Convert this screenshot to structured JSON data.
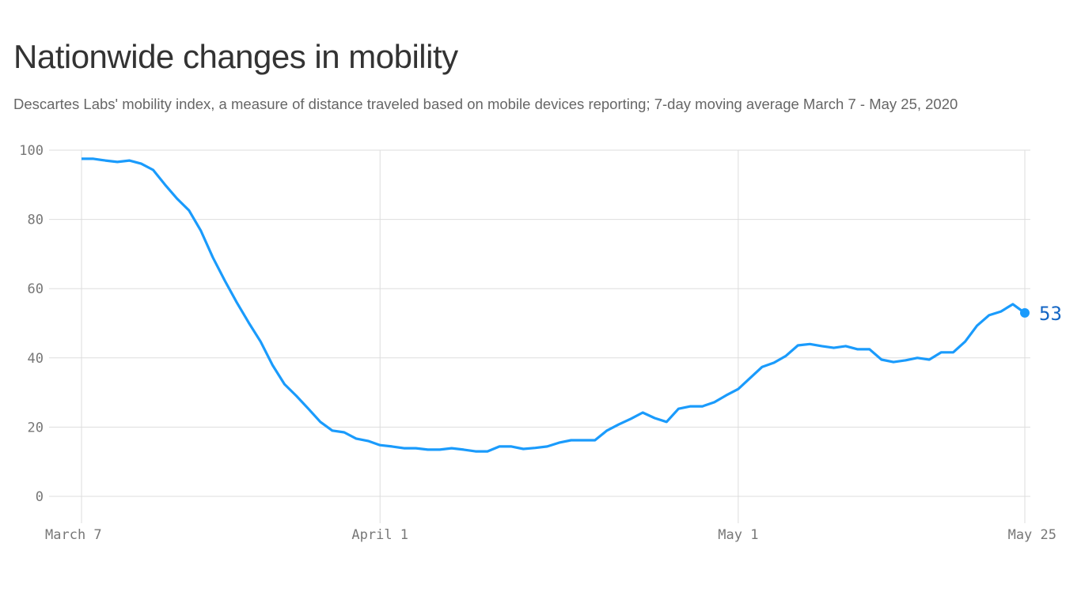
{
  "title": "Nationwide changes in mobility",
  "subtitle": "Descartes Labs' mobility index, a measure of distance traveled based on mobile devices reporting; 7-day moving average March 7 - May 25, 2020",
  "colors": {
    "line": "#1a9bfc",
    "end_label": "#1466c4",
    "grid": "#dddddd"
  },
  "chart_data": {
    "type": "line",
    "title": "Nationwide changes in mobility",
    "ylim": [
      0,
      100
    ],
    "yticks": [
      0,
      20,
      40,
      60,
      80,
      100
    ],
    "xticks": [
      {
        "date": "2020-03-07",
        "label": "March 7"
      },
      {
        "date": "2020-04-01",
        "label": "April 1"
      },
      {
        "date": "2020-05-01",
        "label": "May 1"
      },
      {
        "date": "2020-05-25",
        "label": "May 25"
      }
    ],
    "grid": true,
    "end_label": "53",
    "x": [
      "2020-03-07",
      "2020-03-08",
      "2020-03-09",
      "2020-03-10",
      "2020-03-11",
      "2020-03-12",
      "2020-03-13",
      "2020-03-14",
      "2020-03-15",
      "2020-03-16",
      "2020-03-17",
      "2020-03-18",
      "2020-03-19",
      "2020-03-20",
      "2020-03-21",
      "2020-03-22",
      "2020-03-23",
      "2020-03-24",
      "2020-03-25",
      "2020-03-26",
      "2020-03-27",
      "2020-03-28",
      "2020-03-29",
      "2020-03-30",
      "2020-03-31",
      "2020-04-01",
      "2020-04-02",
      "2020-04-03",
      "2020-04-04",
      "2020-04-05",
      "2020-04-06",
      "2020-04-07",
      "2020-04-08",
      "2020-04-09",
      "2020-04-10",
      "2020-04-11",
      "2020-04-12",
      "2020-04-13",
      "2020-04-14",
      "2020-04-15",
      "2020-04-16",
      "2020-04-17",
      "2020-04-18",
      "2020-04-19",
      "2020-04-20",
      "2020-04-21",
      "2020-04-22",
      "2020-04-23",
      "2020-04-24",
      "2020-04-25",
      "2020-04-26",
      "2020-04-27",
      "2020-04-28",
      "2020-04-29",
      "2020-04-30",
      "2020-05-01",
      "2020-05-02",
      "2020-05-03",
      "2020-05-04",
      "2020-05-05",
      "2020-05-06",
      "2020-05-07",
      "2020-05-08",
      "2020-05-09",
      "2020-05-10",
      "2020-05-11",
      "2020-05-12",
      "2020-05-13",
      "2020-05-14",
      "2020-05-15",
      "2020-05-16",
      "2020-05-17",
      "2020-05-18",
      "2020-05-19",
      "2020-05-20",
      "2020-05-21",
      "2020-05-22",
      "2020-05-23",
      "2020-05-24",
      "2020-05-25"
    ],
    "values": [
      97.5,
      97.5,
      97,
      96.6,
      97,
      96.1,
      94.3,
      90,
      86,
      82.6,
      76.7,
      69,
      62.3,
      56,
      50.2,
      44.7,
      37.9,
      32.4,
      29,
      25.3,
      21.5,
      19,
      18.5,
      16.7,
      16,
      14.8,
      14.4,
      13.9,
      13.9,
      13.5,
      13.5,
      13.9,
      13.5,
      13,
      13,
      14.4,
      14.4,
      13.7,
      14,
      14.4,
      15.5,
      16.2,
      16.2,
      16.2,
      19,
      20.8,
      22.4,
      24.2,
      22.6,
      21.5,
      25.3,
      26,
      26,
      27.2,
      29.2,
      31,
      34.2,
      37.4,
      38.6,
      40.6,
      43.6,
      44,
      43.4,
      42.9,
      43.4,
      42.5,
      42.5,
      39.5,
      38.8,
      39.3,
      40,
      39.5,
      41.6,
      41.6,
      44.7,
      49.3,
      52.3,
      53.4,
      55.5,
      53
    ]
  }
}
